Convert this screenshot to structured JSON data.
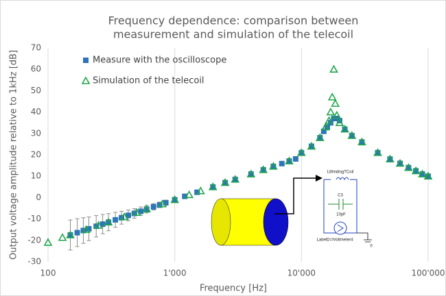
{
  "chart_data": {
    "type": "scatter",
    "title": [
      "Frequency dependence: comparison between",
      "measurement and simulation of the telecoil"
    ],
    "x_label": "Frequency [Hz]",
    "y_label": "Output voltage amplitude relative to 1kHz [dB]",
    "x_scale": "log",
    "xlim": [
      100,
      100000
    ],
    "xticks": [
      100,
      {
        "value": 1000,
        "label": "1'000"
      },
      {
        "value": 10000,
        "label": "10'000"
      },
      {
        "value": 100000,
        "label": "100'000"
      }
    ],
    "ylim": [
      -30,
      70
    ],
    "yticks": [
      -30,
      -20,
      -10,
      0,
      10,
      20,
      30,
      40,
      50,
      60,
      70
    ],
    "grid": "x",
    "legend": "upper left",
    "series": [
      {
        "name": "Measure with the oscilloscope",
        "color": "#2e75b6",
        "marker": "square",
        "x": [
          150,
          170,
          190,
          210,
          240,
          270,
          300,
          340,
          380,
          430,
          480,
          540,
          600,
          680,
          760,
          850,
          1000,
          1200,
          1500,
          2000,
          2500,
          3000,
          4000,
          5000,
          6000,
          7000,
          8000,
          9000,
          10000,
          12000,
          14000,
          15000,
          16000,
          17000,
          18000,
          19000,
          20000,
          22000,
          25000,
          30000,
          40000,
          50000,
          60000,
          70000,
          80000,
          90000,
          100000
        ],
        "values": [
          -17.5,
          -16.4,
          -15.4,
          -14.6,
          -13.4,
          -12.4,
          -11.5,
          -10.4,
          -9.4,
          -8.3,
          -7.4,
          -6.4,
          -5.4,
          -4.3,
          -3.4,
          -2.4,
          -1,
          0.6,
          2.5,
          5,
          7,
          8.5,
          11,
          13,
          14.6,
          15.9,
          17.1,
          18.1,
          21,
          24,
          28,
          31,
          33,
          35,
          37,
          37,
          36,
          32,
          29,
          26,
          21,
          18,
          16,
          14,
          12.5,
          11,
          10
        ],
        "errors": [
          7,
          6.5,
          6,
          5.5,
          5,
          4.5,
          4,
          3.5,
          3,
          2.5,
          2.2,
          2,
          1.8,
          1.5,
          1.3,
          1.2,
          null,
          null,
          null,
          null,
          null,
          null,
          null,
          null,
          null,
          null,
          null,
          null,
          null,
          null,
          null,
          null,
          null,
          null,
          null,
          null,
          null,
          null,
          null,
          null,
          null,
          null,
          null,
          null,
          null,
          null,
          null
        ]
      },
      {
        "name": "Simulation of the telecoil",
        "color": "#1fa64a",
        "marker": "triangle",
        "x": [
          100,
          130,
          150,
          200,
          250,
          300,
          400,
          500,
          600,
          800,
          1000,
          1300,
          1600,
          2000,
          2500,
          3000,
          4000,
          5000,
          6000,
          8000,
          10000,
          12000,
          14000,
          15500,
          16500,
          17000,
          17500,
          18000,
          18500,
          19000,
          20000,
          22000,
          25000,
          30000,
          40000,
          50000,
          60000,
          70000,
          80000,
          90000,
          100000
        ],
        "values": [
          -21,
          -18.7,
          -17.5,
          -15,
          -13,
          -11.5,
          -9,
          -7,
          -5.4,
          -3,
          -1,
          1.3,
          3.1,
          5,
          7,
          8.5,
          11,
          13,
          14.6,
          17.1,
          21,
          24,
          28,
          33,
          36,
          40,
          47,
          60,
          44,
          38.5,
          35,
          32,
          29,
          26,
          21,
          18,
          16,
          14,
          12.5,
          11,
          10
        ]
      }
    ],
    "inset_labels": [
      "LWindingTCoil",
      "C3",
      "10pF",
      "LabelD=IVoltmeter4",
      "0"
    ]
  }
}
